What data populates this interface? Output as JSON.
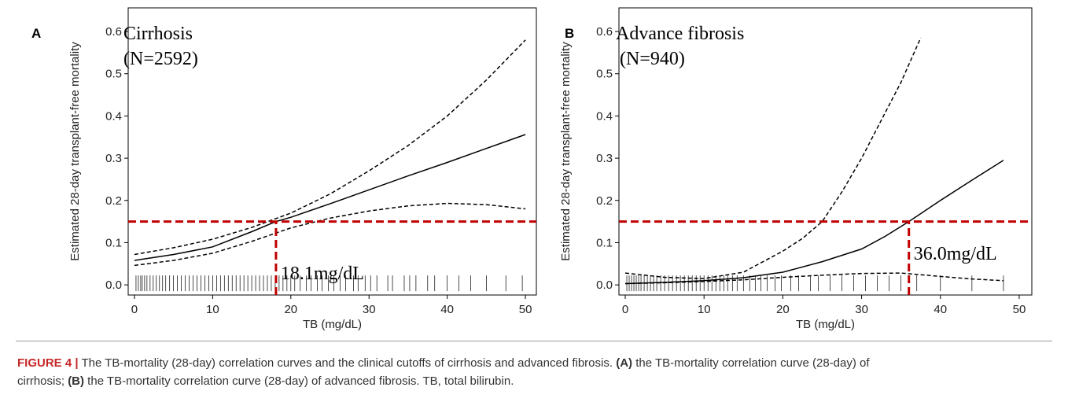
{
  "chart_data": [
    {
      "type": "line",
      "panel": "A",
      "title": "Cirrhosis",
      "subtitle": "(N=2592)",
      "xlabel": "TB (mg/dL)",
      "ylabel": "Estimated 28-day transplant-free mortality",
      "xlim": [
        -0.8,
        51.4
      ],
      "ylim": [
        -0.024,
        0.656
      ],
      "xticks": [
        0,
        10,
        20,
        30,
        40,
        50
      ],
      "yticks": [
        {
          "value": 0,
          "label": "0.0"
        },
        0.1,
        0.2,
        0.3,
        0.4,
        0.5,
        0.6
      ],
      "color": "#000000",
      "series": [
        {
          "linestyle": "solid",
          "x": [
            0,
            5,
            10,
            15,
            18.1,
            20,
            25,
            30,
            35,
            40,
            45,
            50
          ],
          "values": [
            0.058,
            0.072,
            0.09,
            0.126,
            0.15,
            0.16,
            0.192,
            0.225,
            0.258,
            0.29,
            0.323,
            0.356
          ]
        },
        {
          "linestyle": "dashed",
          "x": [
            0,
            5,
            10,
            15,
            20,
            25,
            30,
            35,
            40,
            45,
            50
          ],
          "values": [
            0.072,
            0.088,
            0.108,
            0.136,
            0.17,
            0.215,
            0.27,
            0.33,
            0.4,
            0.485,
            0.58
          ]
        },
        {
          "linestyle": "dashed",
          "x": [
            0,
            5,
            10,
            15,
            20,
            25,
            30,
            35,
            40,
            45,
            50
          ],
          "values": [
            0.046,
            0.058,
            0.075,
            0.103,
            0.135,
            0.158,
            0.175,
            0.187,
            0.193,
            0.19,
            0.18
          ]
        }
      ],
      "cutoff": {
        "x": 18.1,
        "y": 0.15,
        "label": "18.1mg/dL",
        "color": "#c00000"
      },
      "rug": [
        0.2,
        0.5,
        0.8,
        1,
        1.3,
        1.6,
        2,
        2.4,
        2.8,
        3.2,
        3.6,
        4,
        4.5,
        5,
        5.5,
        6,
        6.5,
        7,
        7.5,
        8,
        8.5,
        9,
        9.5,
        10,
        10.5,
        11,
        11.5,
        12,
        12.5,
        13,
        13.5,
        14,
        14.5,
        15,
        15.5,
        16,
        16.5,
        17,
        17.5,
        18,
        18.5,
        19,
        19.5,
        20,
        20.5,
        21.2,
        22,
        22.6,
        23.4,
        24,
        24.8,
        25.5,
        26.3,
        27,
        28,
        28.6,
        29.5,
        30.2,
        31,
        32.4,
        33,
        34.5,
        35.2,
        36,
        37.5,
        38.4,
        40,
        41.5,
        43,
        45,
        47.5,
        49.6
      ]
    },
    {
      "type": "line",
      "panel": "B",
      "title": "Advance fibrosis",
      "subtitle": "(N=940)",
      "xlabel": "TB (mg/dL)",
      "ylabel": "Estimated 28-day transplant-free mortality",
      "xlim": [
        -0.8,
        51.6
      ],
      "ylim": [
        -0.024,
        0.656
      ],
      "xticks": [
        0,
        10,
        20,
        30,
        40,
        50
      ],
      "yticks": [
        {
          "value": 0,
          "label": "0.0"
        },
        0.1,
        0.2,
        0.3,
        0.4,
        0.5,
        0.6
      ],
      "color": "#000000",
      "series": [
        {
          "linestyle": "solid",
          "x": [
            0,
            5,
            10,
            15,
            20,
            25,
            30,
            33,
            36,
            40,
            44,
            48
          ],
          "values": [
            0.003,
            0.006,
            0.01,
            0.017,
            0.03,
            0.055,
            0.085,
            0.115,
            0.15,
            0.2,
            0.248,
            0.295
          ]
        },
        {
          "linestyle": "dashed",
          "x": [
            0,
            5,
            10,
            15,
            20,
            22.5,
            25,
            27.5,
            30,
            32.5,
            35,
            37.5
          ],
          "values": [
            0.028,
            0.018,
            0.015,
            0.03,
            0.08,
            0.11,
            0.15,
            0.22,
            0.3,
            0.39,
            0.48,
            0.585
          ]
        },
        {
          "linestyle": "dashed",
          "x": [
            0,
            5,
            10,
            15,
            20,
            25,
            30,
            35,
            40,
            44,
            48
          ],
          "values": [
            0.003,
            0.005,
            0.008,
            0.012,
            0.018,
            0.023,
            0.027,
            0.028,
            0.02,
            0.014,
            0.01
          ]
        }
      ],
      "cutoff": {
        "x": 36.0,
        "y": 0.15,
        "label": "36.0mg/dL",
        "color": "#c00000"
      },
      "rug": [
        0.2,
        0.5,
        0.8,
        1.1,
        1.4,
        1.7,
        2,
        2.4,
        2.8,
        3.2,
        3.6,
        4,
        4.5,
        5,
        5.5,
        6,
        6.5,
        7,
        7.5,
        8,
        8.5,
        9,
        9.5,
        10,
        10.5,
        11,
        11.5,
        12,
        12.5,
        13,
        13.6,
        14.2,
        15,
        15.8,
        16.5,
        17.2,
        18,
        19,
        19.8,
        21,
        22,
        23.5,
        24.5,
        26,
        27.5,
        29,
        30.5,
        32,
        33.5,
        35,
        37,
        40,
        44,
        48
      ]
    }
  ],
  "caption": [
    [
      {
        "text": "FIGURE 4 |",
        "bold": true
      },
      {
        "text": " The TB-mortality (28-day) correlation curves and the clinical cutoffs of cirrhosis and advanced fibrosis. "
      },
      {
        "text": "(A)",
        "bold": true
      },
      {
        "text": " the TB-mortality correlation curve (28-day) of"
      }
    ],
    [
      {
        "text": "cirrhosis; "
      },
      {
        "text": "(B)",
        "bold": true
      },
      {
        "text": " the TB-mortality correlation curve (28-day) of advanced fibrosis. TB, total bilirubin."
      }
    ]
  ]
}
